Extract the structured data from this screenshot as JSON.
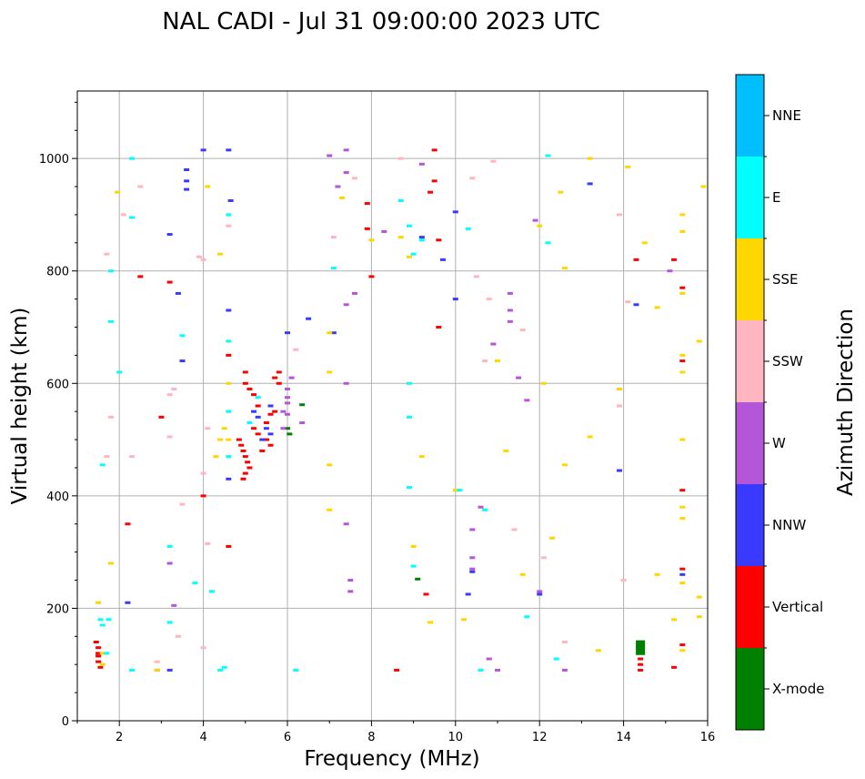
{
  "chart_data": {
    "type": "scatter",
    "title": "NAL CADI - Jul 31 09:00:00 2023 UTC",
    "xlabel": "Frequency (MHz)",
    "ylabel": "Virtual height (km)",
    "xlim": [
      1,
      16
    ],
    "ylim": [
      0,
      1120
    ],
    "xticks": [
      "2",
      "4",
      "6",
      "8",
      "10",
      "12",
      "14",
      "16"
    ],
    "yticks": [
      "0",
      "200",
      "400",
      "600",
      "800",
      "1000"
    ],
    "grid": true,
    "colorbar": {
      "label": "Azimuth Direction",
      "categories": [
        "X-mode",
        "Vertical",
        "NNW",
        "W",
        "SSW",
        "SSE",
        "E",
        "NNE"
      ],
      "colors": [
        "#008000",
        "#ff0000",
        "#3a3aff",
        "#b456d8",
        "#ffb6c1",
        "#ffd700",
        "#00ffff",
        "#00bfff"
      ]
    },
    "series": [
      {
        "name": "X-mode",
        "points": [
          [
            6.35,
            562
          ],
          [
            6.05,
            510
          ],
          [
            9.1,
            252
          ],
          [
            14.4,
            135
          ],
          [
            14.4,
            125
          ],
          [
            6.0,
            520
          ]
        ]
      },
      {
        "name": "Vertical",
        "points": [
          [
            1.45,
            140
          ],
          [
            1.5,
            130
          ],
          [
            1.5,
            120
          ],
          [
            1.5,
            105
          ],
          [
            1.55,
            95
          ],
          [
            1.5,
            115
          ],
          [
            5.0,
            620
          ],
          [
            5.0,
            600
          ],
          [
            5.1,
            590
          ],
          [
            5.2,
            580
          ],
          [
            5.3,
            560
          ],
          [
            4.85,
            500
          ],
          [
            4.9,
            490
          ],
          [
            4.95,
            480
          ],
          [
            5.0,
            470
          ],
          [
            5.05,
            460
          ],
          [
            5.1,
            450
          ],
          [
            5.0,
            440
          ],
          [
            4.95,
            430
          ],
          [
            5.2,
            520
          ],
          [
            5.3,
            510
          ],
          [
            5.5,
            500
          ],
          [
            5.6,
            490
          ],
          [
            5.4,
            480
          ],
          [
            5.5,
            530
          ],
          [
            5.6,
            545
          ],
          [
            5.7,
            550
          ],
          [
            5.8,
            600
          ],
          [
            5.8,
            620
          ],
          [
            14.4,
            100
          ],
          [
            14.4,
            90
          ],
          [
            14.4,
            110
          ],
          [
            15.2,
            95
          ],
          [
            15.4,
            135
          ],
          [
            15.4,
            270
          ],
          [
            15.4,
            770
          ],
          [
            15.4,
            640
          ],
          [
            15.4,
            410
          ],
          [
            15.2,
            820
          ],
          [
            9.5,
            1015
          ],
          [
            9.4,
            940
          ],
          [
            9.6,
            700
          ],
          [
            9.6,
            855
          ],
          [
            9.5,
            960
          ],
          [
            8.0,
            790
          ],
          [
            7.9,
            875
          ],
          [
            7.9,
            920
          ],
          [
            8.6,
            90
          ],
          [
            4.6,
            310
          ],
          [
            4.6,
            650
          ],
          [
            5.7,
            610
          ],
          [
            3.2,
            780
          ],
          [
            3.0,
            540
          ],
          [
            2.2,
            350
          ],
          [
            2.5,
            790
          ],
          [
            9.3,
            225
          ],
          [
            4.0,
            400
          ],
          [
            14.3,
            820
          ]
        ]
      },
      {
        "name": "NNW",
        "points": [
          [
            4.0,
            1015
          ],
          [
            4.6,
            1015
          ],
          [
            3.6,
            980
          ],
          [
            3.6,
            960
          ],
          [
            3.6,
            945
          ],
          [
            4.65,
            925
          ],
          [
            3.2,
            865
          ],
          [
            3.4,
            760
          ],
          [
            4.6,
            430
          ],
          [
            4.6,
            730
          ],
          [
            5.2,
            550
          ],
          [
            5.3,
            540
          ],
          [
            5.5,
            520
          ],
          [
            5.6,
            560
          ],
          [
            5.4,
            500
          ],
          [
            5.6,
            510
          ],
          [
            6.0,
            690
          ],
          [
            6.5,
            715
          ],
          [
            9.2,
            860
          ],
          [
            9.7,
            820
          ],
          [
            10.0,
            905
          ],
          [
            10.0,
            750
          ],
          [
            10.4,
            265
          ],
          [
            10.3,
            225
          ],
          [
            12.0,
            225
          ],
          [
            13.2,
            955
          ],
          [
            13.9,
            445
          ],
          [
            14.3,
            740
          ],
          [
            15.4,
            260
          ],
          [
            2.2,
            210
          ],
          [
            3.2,
            90
          ],
          [
            7.1,
            690
          ],
          [
            3.5,
            640
          ]
        ]
      },
      {
        "name": "W",
        "points": [
          [
            5.9,
            550
          ],
          [
            6.0,
            575
          ],
          [
            6.0,
            590
          ],
          [
            6.1,
            610
          ],
          [
            6.0,
            545
          ],
          [
            6.35,
            530
          ],
          [
            5.9,
            520
          ],
          [
            7.4,
            1015
          ],
          [
            7.4,
            975
          ],
          [
            7.4,
            740
          ],
          [
            7.6,
            760
          ],
          [
            7.4,
            600
          ],
          [
            7.5,
            250
          ],
          [
            7.5,
            230
          ],
          [
            8.3,
            870
          ],
          [
            9.2,
            990
          ],
          [
            10.4,
            340
          ],
          [
            10.4,
            290
          ],
          [
            10.6,
            380
          ],
          [
            10.8,
            110
          ],
          [
            10.9,
            670
          ],
          [
            11.3,
            760
          ],
          [
            11.3,
            730
          ],
          [
            11.3,
            710
          ],
          [
            11.5,
            610
          ],
          [
            11.7,
            570
          ],
          [
            11.9,
            890
          ],
          [
            12.0,
            230
          ],
          [
            12.6,
            90
          ],
          [
            15.1,
            800
          ],
          [
            3.2,
            280
          ],
          [
            2.9,
            90
          ],
          [
            3.3,
            205
          ],
          [
            6.0,
            565
          ],
          [
            7.4,
            350
          ],
          [
            7.0,
            1005
          ],
          [
            7.2,
            950
          ],
          [
            10.4,
            270
          ],
          [
            11.0,
            90
          ]
        ]
      },
      {
        "name": "SSW",
        "points": [
          [
            1.7,
            830
          ],
          [
            2.1,
            900
          ],
          [
            2.5,
            950
          ],
          [
            1.7,
            470
          ],
          [
            1.8,
            540
          ],
          [
            3.2,
            580
          ],
          [
            3.3,
            590
          ],
          [
            3.2,
            505
          ],
          [
            3.9,
            825
          ],
          [
            4.0,
            820
          ],
          [
            4.1,
            520
          ],
          [
            4.0,
            440
          ],
          [
            4.1,
            315
          ],
          [
            4.2,
            230
          ],
          [
            4.0,
            130
          ],
          [
            4.6,
            880
          ],
          [
            6.2,
            660
          ],
          [
            7.1,
            860
          ],
          [
            7.6,
            965
          ],
          [
            8.7,
            1000
          ],
          [
            10.4,
            965
          ],
          [
            10.5,
            790
          ],
          [
            10.8,
            750
          ],
          [
            10.7,
            640
          ],
          [
            10.9,
            995
          ],
          [
            11.4,
            340
          ],
          [
            11.6,
            695
          ],
          [
            12.1,
            290
          ],
          [
            12.6,
            140
          ],
          [
            13.9,
            900
          ],
          [
            13.9,
            560
          ],
          [
            14.1,
            745
          ],
          [
            14.0,
            250
          ],
          [
            3.4,
            150
          ],
          [
            3.5,
            385
          ],
          [
            2.3,
            470
          ],
          [
            2.9,
            105
          ]
        ]
      },
      {
        "name": "SSE",
        "points": [
          [
            1.5,
            210
          ],
          [
            1.6,
            120
          ],
          [
            1.6,
            100
          ],
          [
            1.8,
            280
          ],
          [
            1.95,
            940
          ],
          [
            4.1,
            950
          ],
          [
            4.4,
            830
          ],
          [
            4.5,
            520
          ],
          [
            4.3,
            470
          ],
          [
            4.4,
            500
          ],
          [
            4.6,
            500
          ],
          [
            4.6,
            600
          ],
          [
            7.0,
            690
          ],
          [
            7.0,
            620
          ],
          [
            7.0,
            455
          ],
          [
            7.0,
            375
          ],
          [
            7.3,
            930
          ],
          [
            8.0,
            855
          ],
          [
            8.7,
            860
          ],
          [
            8.9,
            825
          ],
          [
            9.0,
            310
          ],
          [
            9.2,
            470
          ],
          [
            9.4,
            175
          ],
          [
            10.0,
            410
          ],
          [
            10.2,
            180
          ],
          [
            11.0,
            640
          ],
          [
            11.2,
            480
          ],
          [
            11.6,
            260
          ],
          [
            12.0,
            880
          ],
          [
            12.3,
            325
          ],
          [
            12.5,
            940
          ],
          [
            12.6,
            805
          ],
          [
            12.6,
            455
          ],
          [
            13.2,
            1000
          ],
          [
            13.2,
            505
          ],
          [
            13.4,
            125
          ],
          [
            13.9,
            590
          ],
          [
            14.1,
            985
          ],
          [
            14.5,
            850
          ],
          [
            14.8,
            735
          ],
          [
            14.8,
            260
          ],
          [
            15.2,
            180
          ],
          [
            15.4,
            900
          ],
          [
            15.4,
            870
          ],
          [
            15.4,
            760
          ],
          [
            15.4,
            650
          ],
          [
            15.4,
            620
          ],
          [
            15.4,
            500
          ],
          [
            15.4,
            380
          ],
          [
            15.4,
            360
          ],
          [
            15.4,
            245
          ],
          [
            15.4,
            125
          ],
          [
            15.9,
            950
          ],
          [
            15.8,
            675
          ],
          [
            15.8,
            220
          ],
          [
            15.8,
            185
          ],
          [
            12.1,
            600
          ],
          [
            2.9,
            90
          ]
        ]
      },
      {
        "name": "E",
        "points": [
          [
            1.55,
            180
          ],
          [
            1.6,
            170
          ],
          [
            1.7,
            120
          ],
          [
            1.75,
            180
          ],
          [
            1.8,
            800
          ],
          [
            1.8,
            710
          ],
          [
            2.0,
            620
          ],
          [
            1.6,
            455
          ],
          [
            2.3,
            895
          ],
          [
            2.3,
            1000
          ],
          [
            3.2,
            175
          ],
          [
            3.2,
            310
          ],
          [
            3.5,
            685
          ],
          [
            3.8,
            245
          ],
          [
            4.2,
            230
          ],
          [
            4.4,
            90
          ],
          [
            4.6,
            900
          ],
          [
            4.6,
            675
          ],
          [
            4.6,
            550
          ],
          [
            4.6,
            470
          ],
          [
            5.1,
            530
          ],
          [
            5.3,
            575
          ],
          [
            6.2,
            90
          ],
          [
            7.1,
            805
          ],
          [
            8.7,
            925
          ],
          [
            8.9,
            880
          ],
          [
            8.9,
            600
          ],
          [
            8.9,
            540
          ],
          [
            8.9,
            415
          ],
          [
            9.0,
            830
          ],
          [
            9.0,
            275
          ],
          [
            9.2,
            855
          ],
          [
            10.1,
            410
          ],
          [
            10.3,
            875
          ],
          [
            10.6,
            90
          ],
          [
            10.7,
            375
          ],
          [
            11.7,
            185
          ],
          [
            12.2,
            850
          ],
          [
            12.4,
            110
          ],
          [
            12.2,
            1005
          ],
          [
            4.5,
            95
          ],
          [
            2.3,
            90
          ]
        ]
      },
      {
        "name": "NNE",
        "points": []
      }
    ]
  }
}
